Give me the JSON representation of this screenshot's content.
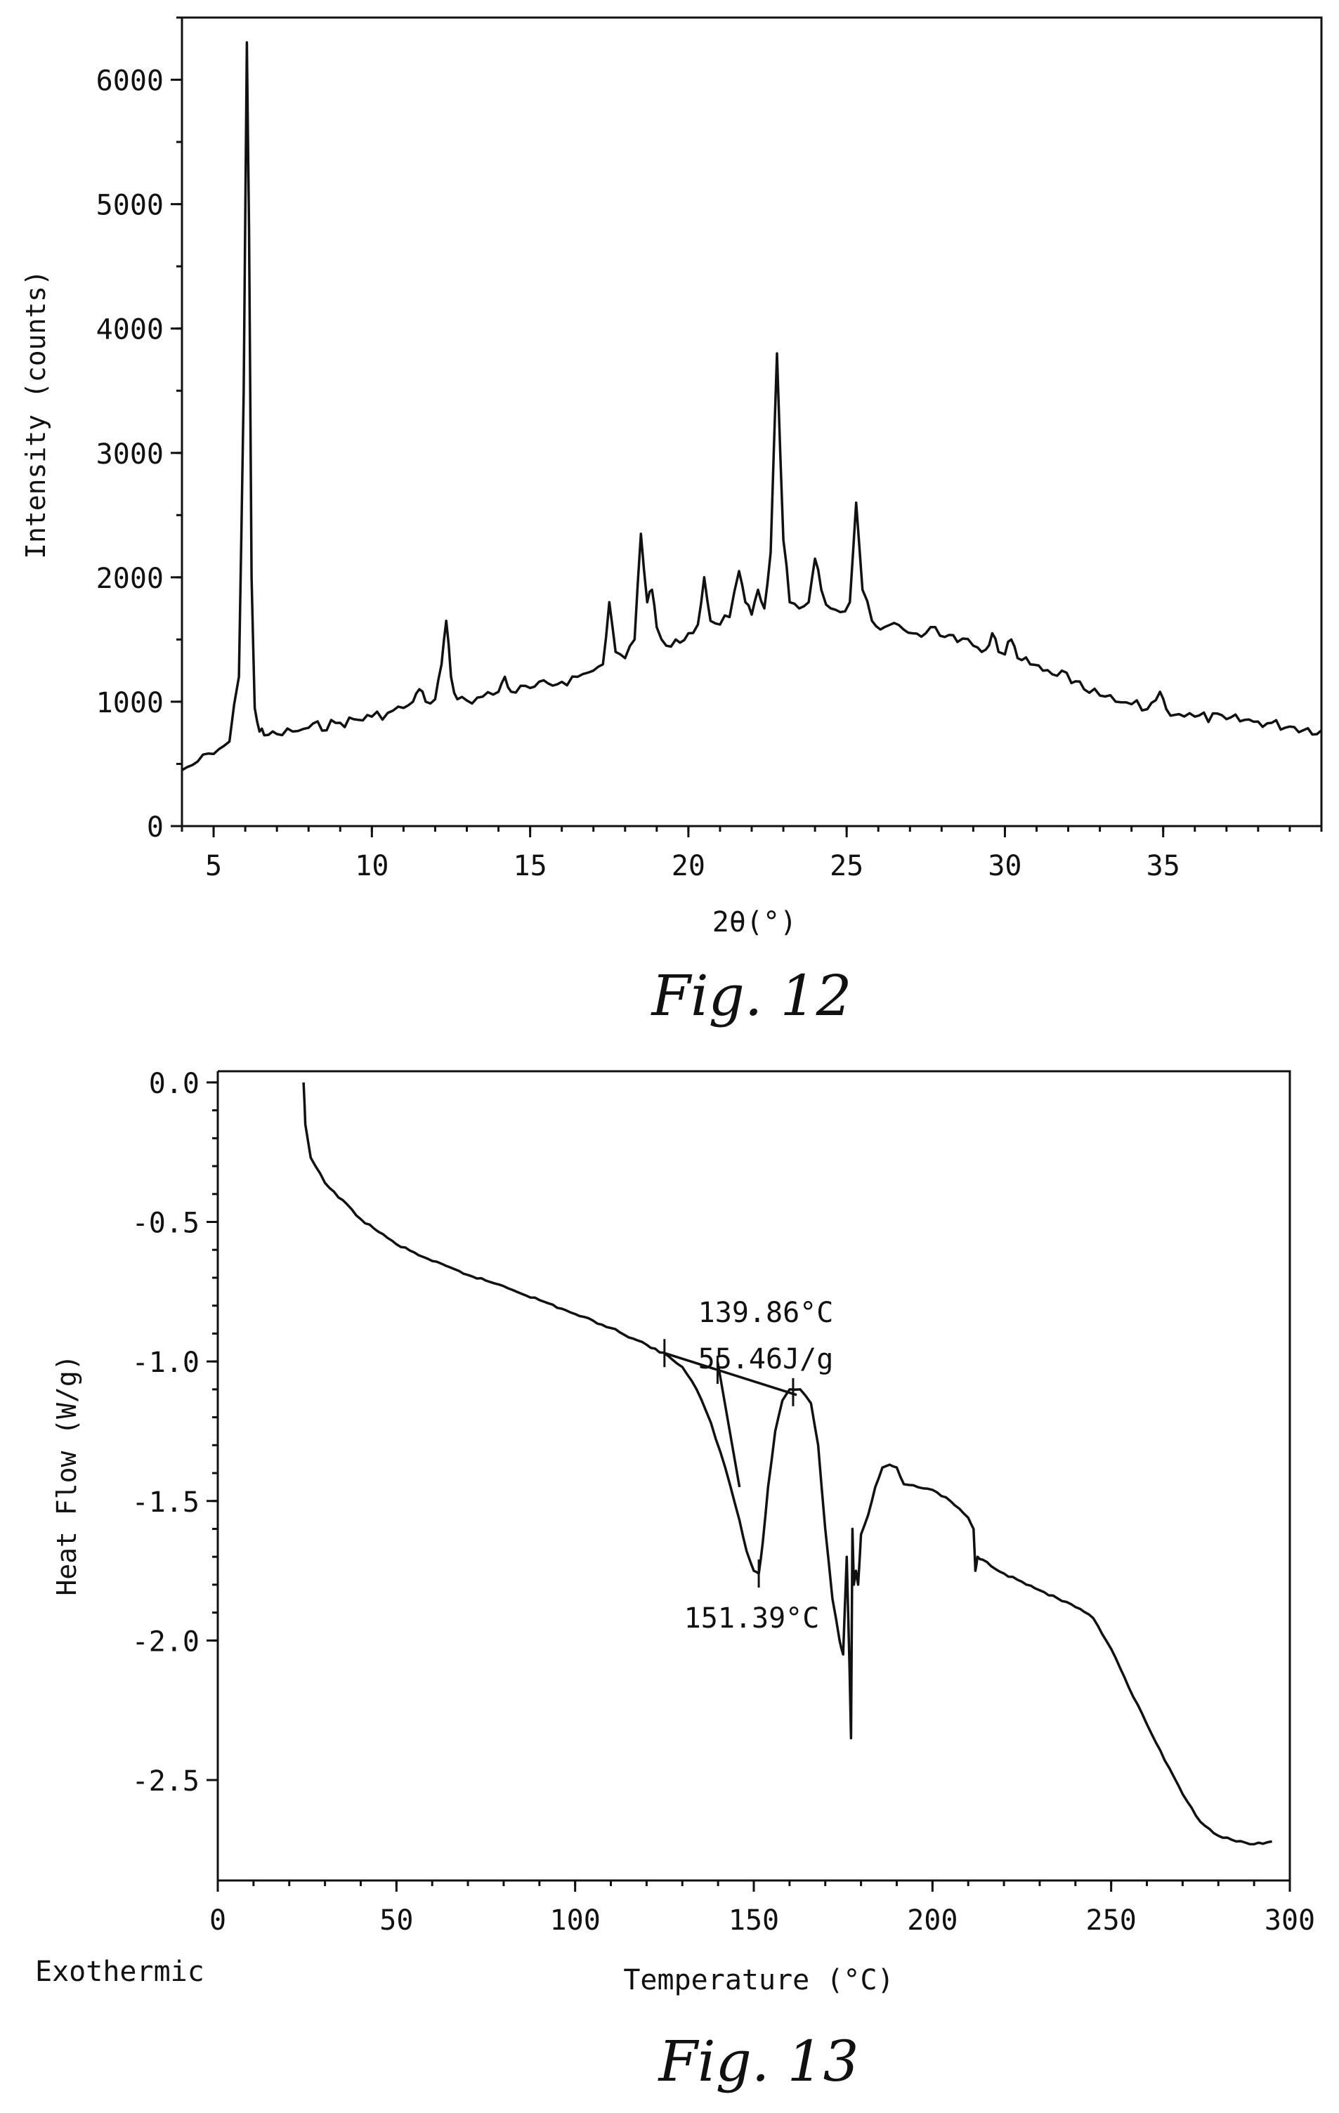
{
  "figures": [
    {
      "caption": "Fig. 12"
    },
    {
      "caption": "Fig. 13",
      "corner_label": "Exothermic"
    }
  ],
  "chart_data": [
    {
      "type": "line",
      "xlabel": "2θ(°)",
      "ylabel": "Intensity (counts)",
      "xlim": [
        4,
        40
      ],
      "ylim": [
        0,
        6500
      ],
      "xticks": [
        5,
        10,
        15,
        20,
        25,
        30,
        35
      ],
      "yticks": [
        0,
        1000,
        2000,
        3000,
        4000,
        5000,
        6000
      ],
      "grid": false,
      "series": [
        {
          "x": [
            4.0,
            4.5,
            5.0,
            5.5,
            5.8,
            5.95,
            6.05,
            6.12,
            6.2,
            6.3,
            6.45,
            6.6,
            7.0,
            7.5,
            8.0,
            9.0,
            10.0,
            10.5,
            11.0,
            11.3,
            11.5,
            11.7,
            12.0,
            12.2,
            12.35,
            12.5,
            12.7,
            13.0,
            13.5,
            14.0,
            14.2,
            14.4,
            15.0,
            16.0,
            16.5,
            17.0,
            17.3,
            17.5,
            17.7,
            18.0,
            18.3,
            18.5,
            18.7,
            18.85,
            19.0,
            19.3,
            19.6,
            20.0,
            20.3,
            20.5,
            20.7,
            21.0,
            21.3,
            21.6,
            21.8,
            22.0,
            22.2,
            22.4,
            22.6,
            22.8,
            23.0,
            23.2,
            23.5,
            23.8,
            24.0,
            24.2,
            24.5,
            24.8,
            25.1,
            25.3,
            25.5,
            25.8,
            26.2,
            26.8,
            27.5,
            27.8,
            28.1,
            28.5,
            29.0,
            29.4,
            29.6,
            29.8,
            30.0,
            30.2,
            30.4,
            30.8,
            31.2,
            31.5,
            31.8,
            32.1,
            32.5,
            33.0,
            33.5,
            34.0,
            34.5,
            34.9,
            35.1,
            35.5,
            36.0,
            37.0,
            38.0,
            39.0,
            40.0
          ],
          "y": [
            450,
            520,
            580,
            680,
            1200,
            3500,
            6300,
            4800,
            2000,
            950,
            760,
            730,
            740,
            760,
            790,
            830,
            880,
            910,
            950,
            1000,
            1100,
            1000,
            1020,
            1300,
            1650,
            1200,
            1020,
            1010,
            1040,
            1080,
            1200,
            1080,
            1110,
            1160,
            1200,
            1250,
            1300,
            1800,
            1400,
            1350,
            1500,
            2350,
            1800,
            1900,
            1600,
            1450,
            1500,
            1550,
            1620,
            2000,
            1650,
            1620,
            1680,
            2050,
            1800,
            1700,
            1900,
            1750,
            2200,
            3800,
            2300,
            1800,
            1750,
            1800,
            2150,
            1900,
            1750,
            1720,
            1800,
            2600,
            1900,
            1650,
            1600,
            1580,
            1550,
            1600,
            1520,
            1480,
            1450,
            1420,
            1550,
            1400,
            1380,
            1500,
            1350,
            1300,
            1250,
            1220,
            1250,
            1150,
            1100,
            1050,
            1000,
            980,
            940,
            1080,
            940,
            900,
            880,
            860,
            840,
            800,
            770
          ]
        }
      ]
    },
    {
      "type": "line",
      "xlabel": "Temperature (°C)",
      "ylabel": "Heat Flow (W/g)",
      "xlim": [
        0,
        300
      ],
      "ylim": [
        -2.86,
        0.04
      ],
      "xticks": [
        0,
        50,
        100,
        150,
        200,
        250,
        300
      ],
      "yticks": [
        0.0,
        -0.5,
        -1.0,
        -1.5,
        -2.0,
        -2.5
      ],
      "ytick_labels": [
        "0.0",
        "-0.5",
        "-1.0",
        "-1.5",
        "-2.0",
        "-2.5"
      ],
      "grid": false,
      "annotations": [
        "139.86°C",
        "55.46J/g",
        "151.39°C"
      ],
      "series": [
        {
          "x": [
            24,
            24.5,
            26,
            30,
            40,
            50,
            60,
            70,
            80,
            90,
            100,
            110,
            120,
            126,
            130,
            134,
            138,
            142,
            146,
            148,
            150,
            151.4,
            152.5,
            154,
            156,
            158,
            160,
            163,
            166,
            168,
            170,
            172,
            174,
            175,
            176,
            176.8,
            177.2,
            177.6,
            178,
            178.6,
            179.2,
            180,
            182,
            184,
            186,
            188,
            190,
            192,
            200,
            205,
            210,
            211.5,
            212,
            212.6,
            214,
            220,
            230,
            240,
            245,
            250,
            255,
            260,
            265,
            270,
            275,
            280,
            285,
            290,
            295
          ],
          "y": [
            0.0,
            -0.15,
            -0.27,
            -0.36,
            -0.49,
            -0.58,
            -0.64,
            -0.69,
            -0.73,
            -0.78,
            -0.83,
            -0.88,
            -0.94,
            -0.98,
            -1.02,
            -1.1,
            -1.22,
            -1.38,
            -1.57,
            -1.68,
            -1.75,
            -1.76,
            -1.65,
            -1.45,
            -1.25,
            -1.14,
            -1.1,
            -1.1,
            -1.15,
            -1.3,
            -1.6,
            -1.85,
            -2.0,
            -2.05,
            -1.7,
            -2.1,
            -2.35,
            -1.6,
            -1.8,
            -1.75,
            -1.8,
            -1.62,
            -1.55,
            -1.45,
            -1.38,
            -1.37,
            -1.38,
            -1.44,
            -1.46,
            -1.5,
            -1.56,
            -1.6,
            -1.75,
            -1.7,
            -1.71,
            -1.76,
            -1.82,
            -1.88,
            -1.92,
            -2.03,
            -2.17,
            -2.3,
            -2.43,
            -2.55,
            -2.65,
            -2.7,
            -2.72,
            -2.73,
            -2.72
          ]
        }
      ]
    }
  ]
}
